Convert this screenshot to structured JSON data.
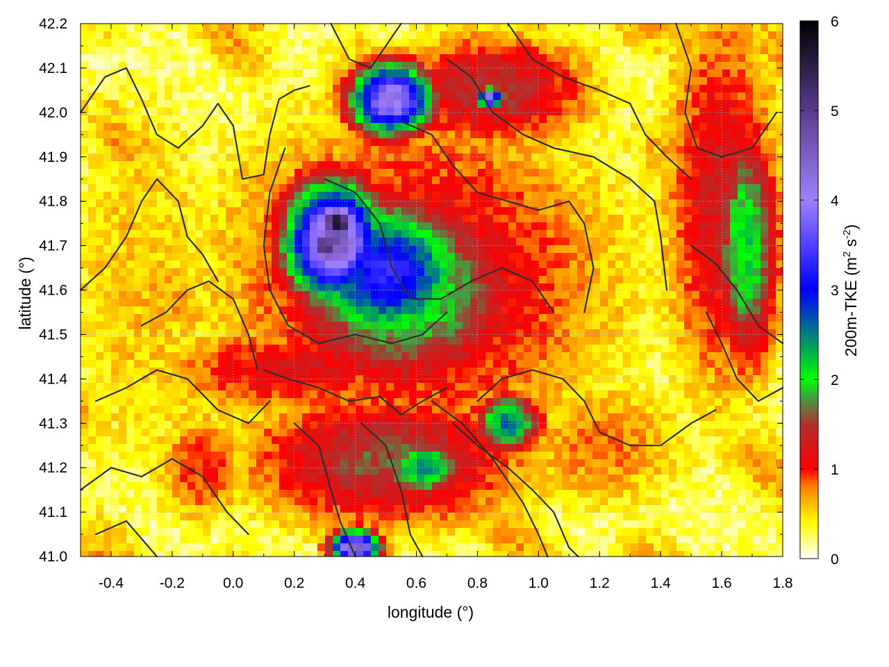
{
  "chart_data": {
    "type": "heatmap",
    "title": "",
    "xlabel": "longitude (°)",
    "ylabel": "latitude (°)",
    "xlim": [
      -0.5,
      1.8
    ],
    "ylim": [
      41.0,
      42.2
    ],
    "xticks": [
      -0.4,
      -0.2,
      0.0,
      0.2,
      0.4,
      0.6,
      0.8,
      1.0,
      1.2,
      1.4,
      1.6,
      1.8
    ],
    "xtick_labels": [
      "-0.4",
      "-0.2",
      "0.0",
      "0.2",
      "0.4",
      "0.6",
      "0.8",
      "1.0",
      "1.2",
      "1.4",
      "1.6",
      "1.8"
    ],
    "yticks": [
      41.0,
      41.1,
      41.2,
      41.3,
      41.4,
      41.5,
      41.6,
      41.7,
      41.8,
      41.9,
      42.0,
      42.1,
      42.2
    ],
    "ytick_labels": [
      "41.0",
      "41.1",
      "41.2",
      "41.3",
      "41.4",
      "41.5",
      "41.6",
      "41.7",
      "41.8",
      "41.9",
      "42.0",
      "42.1",
      "42.2"
    ],
    "grid": true,
    "colorbar": {
      "label_prefix": "200m-TKE (m",
      "label_sup1": "2",
      "label_mid": " s",
      "label_sup2": "-2",
      "label_suffix": ")",
      "range": [
        0,
        6
      ],
      "ticks": [
        0,
        1,
        2,
        3,
        4,
        5,
        6
      ],
      "tick_labels": [
        "0",
        "1",
        "2",
        "3",
        "4",
        "5",
        "6"
      ],
      "stops": [
        {
          "value": 0.0,
          "color": "#ffffff"
        },
        {
          "value": 0.4,
          "color": "#ffff00"
        },
        {
          "value": 0.8,
          "color": "#ff8000"
        },
        {
          "value": 1.0,
          "color": "#ff0000"
        },
        {
          "value": 1.5,
          "color": "#b03030"
        },
        {
          "value": 1.8,
          "color": "#40a040"
        },
        {
          "value": 2.0,
          "color": "#00ff00"
        },
        {
          "value": 3.0,
          "color": "#0000ff"
        },
        {
          "value": 4.0,
          "color": "#a080ff"
        },
        {
          "value": 5.0,
          "color": "#5a3c8c"
        },
        {
          "value": 6.0,
          "color": "#000000"
        }
      ]
    },
    "field_features": [
      {
        "name": "core",
        "lon": 0.34,
        "lat": 41.75,
        "value": 5.6,
        "slon": 0.06,
        "slat": 0.04
      },
      {
        "name": "core2",
        "lon": 0.3,
        "lat": 41.7,
        "value": 5.3,
        "slon": 0.05,
        "slat": 0.04
      },
      {
        "name": "purple-north",
        "lon": 0.52,
        "lat": 42.03,
        "value": 4.3,
        "slon": 0.1,
        "slat": 0.06
      },
      {
        "name": "purple-main",
        "lon": 0.33,
        "lat": 41.71,
        "value": 4.6,
        "slon": 0.12,
        "slat": 0.1
      },
      {
        "name": "blue-main",
        "lon": 0.5,
        "lat": 41.64,
        "value": 3.3,
        "slon": 0.2,
        "slat": 0.12
      },
      {
        "name": "green-rim",
        "lon": 0.55,
        "lat": 41.6,
        "value": 2.2,
        "slon": 0.3,
        "slat": 0.17
      },
      {
        "name": "red-halo",
        "lon": 0.6,
        "lat": 41.62,
        "value": 1.3,
        "slon": 0.5,
        "slat": 0.3
      },
      {
        "name": "south-band",
        "lon": 0.5,
        "lat": 41.22,
        "value": 1.6,
        "slon": 0.35,
        "slat": 0.12
      },
      {
        "name": "south-blue",
        "lon": 0.62,
        "lat": 41.2,
        "value": 2.5,
        "slon": 0.1,
        "slat": 0.05
      },
      {
        "name": "south-purple",
        "lon": 0.4,
        "lat": 41.02,
        "value": 4.5,
        "slon": 0.06,
        "slat": 0.03
      },
      {
        "name": "se-patch",
        "lon": 0.9,
        "lat": 41.3,
        "value": 2.6,
        "slon": 0.08,
        "slat": 0.05
      },
      {
        "name": "east-band",
        "lon": 1.68,
        "lat": 41.7,
        "value": 2.2,
        "slon": 0.08,
        "slat": 0.2
      },
      {
        "name": "east-red",
        "lon": 1.6,
        "lat": 41.8,
        "value": 1.3,
        "slon": 0.15,
        "slat": 0.35
      },
      {
        "name": "north-red",
        "lon": 0.85,
        "lat": 42.05,
        "value": 1.5,
        "slon": 0.25,
        "slat": 0.1
      },
      {
        "name": "north-dark",
        "lon": 0.84,
        "lat": 42.03,
        "value": 4.0,
        "slon": 0.03,
        "slat": 0.02
      },
      {
        "name": "diag-band",
        "lon": 0.2,
        "lat": 41.42,
        "value": 1.2,
        "slon": 0.35,
        "slat": 0.08
      },
      {
        "name": "west-yellow",
        "lon": -0.3,
        "lat": 41.6,
        "value": 0.6,
        "slon": 0.25,
        "slat": 0.4
      },
      {
        "name": "sw-red",
        "lon": -0.1,
        "lat": 41.2,
        "value": 1.0,
        "slon": 0.12,
        "slat": 0.1
      },
      {
        "name": "east-south-orange",
        "lon": 1.2,
        "lat": 41.25,
        "value": 0.8,
        "slon": 0.25,
        "slat": 0.12
      }
    ],
    "contours": [
      [
        [
          -0.5,
          42.0
        ],
        [
          -0.42,
          42.08
        ],
        [
          -0.35,
          42.1
        ],
        [
          -0.3,
          42.03
        ],
        [
          -0.25,
          41.95
        ],
        [
          -0.18,
          41.92
        ],
        [
          -0.1,
          41.97
        ],
        [
          -0.05,
          42.02
        ],
        [
          0.0,
          41.97
        ],
        [
          0.03,
          41.85
        ]
      ],
      [
        [
          0.03,
          41.85
        ],
        [
          0.1,
          41.86
        ],
        [
          0.12,
          41.95
        ],
        [
          0.15,
          42.03
        ],
        [
          0.2,
          42.05
        ],
        [
          0.25,
          42.06
        ]
      ],
      [
        [
          -0.5,
          41.6
        ],
        [
          -0.42,
          41.65
        ],
        [
          -0.35,
          41.72
        ],
        [
          -0.3,
          41.8
        ],
        [
          -0.25,
          41.85
        ],
        [
          -0.18,
          41.8
        ],
        [
          -0.15,
          41.72
        ],
        [
          -0.1,
          41.68
        ],
        [
          -0.05,
          41.62
        ]
      ],
      [
        [
          -0.3,
          41.52
        ],
        [
          -0.22,
          41.55
        ],
        [
          -0.15,
          41.6
        ],
        [
          -0.08,
          41.62
        ],
        [
          0.0,
          41.58
        ],
        [
          0.05,
          41.5
        ],
        [
          0.08,
          41.42
        ]
      ],
      [
        [
          -0.45,
          41.35
        ],
        [
          -0.35,
          41.38
        ],
        [
          -0.25,
          41.42
        ],
        [
          -0.15,
          41.4
        ],
        [
          -0.05,
          41.33
        ],
        [
          0.05,
          41.3
        ],
        [
          0.12,
          41.35
        ]
      ],
      [
        [
          -0.5,
          41.15
        ],
        [
          -0.4,
          41.2
        ],
        [
          -0.3,
          41.18
        ],
        [
          -0.2,
          41.22
        ],
        [
          -0.1,
          41.18
        ],
        [
          -0.02,
          41.1
        ],
        [
          0.05,
          41.05
        ]
      ],
      [
        [
          -0.45,
          41.05
        ],
        [
          -0.35,
          41.08
        ],
        [
          -0.25,
          41.0
        ]
      ],
      [
        [
          0.17,
          41.92
        ],
        [
          0.12,
          41.82
        ],
        [
          0.1,
          41.7
        ],
        [
          0.12,
          41.6
        ],
        [
          0.18,
          41.52
        ],
        [
          0.28,
          41.48
        ],
        [
          0.4,
          41.5
        ],
        [
          0.52,
          41.48
        ],
        [
          0.62,
          41.5
        ],
        [
          0.7,
          41.55
        ]
      ],
      [
        [
          0.3,
          41.85
        ],
        [
          0.4,
          41.82
        ],
        [
          0.48,
          41.75
        ],
        [
          0.52,
          41.65
        ],
        [
          0.58,
          41.58
        ],
        [
          0.68,
          41.58
        ],
        [
          0.78,
          41.62
        ],
        [
          0.88,
          41.65
        ],
        [
          0.98,
          41.62
        ],
        [
          1.05,
          41.55
        ]
      ],
      [
        [
          0.55,
          41.98
        ],
        [
          0.65,
          41.95
        ],
        [
          0.72,
          41.88
        ],
        [
          0.8,
          41.82
        ],
        [
          0.9,
          41.8
        ],
        [
          1.0,
          41.78
        ],
        [
          1.1,
          41.8
        ],
        [
          1.15,
          41.75
        ],
        [
          1.18,
          41.65
        ],
        [
          1.15,
          41.55
        ]
      ],
      [
        [
          0.7,
          42.12
        ],
        [
          0.78,
          42.08
        ],
        [
          0.85,
          42.0
        ],
        [
          0.95,
          41.95
        ],
        [
          1.05,
          41.92
        ],
        [
          1.18,
          41.9
        ],
        [
          1.3,
          41.85
        ],
        [
          1.38,
          41.8
        ],
        [
          1.4,
          41.72
        ],
        [
          1.42,
          41.6
        ]
      ],
      [
        [
          0.9,
          42.2
        ],
        [
          0.98,
          42.12
        ],
        [
          1.08,
          42.08
        ],
        [
          1.2,
          42.05
        ],
        [
          1.3,
          42.02
        ],
        [
          1.35,
          41.95
        ],
        [
          1.42,
          41.9
        ],
        [
          1.5,
          41.85
        ]
      ],
      [
        [
          1.45,
          42.2
        ],
        [
          1.5,
          42.1
        ],
        [
          1.48,
          42.0
        ],
        [
          1.52,
          41.92
        ],
        [
          1.6,
          41.9
        ],
        [
          1.7,
          41.92
        ],
        [
          1.78,
          42.0
        ]
      ],
      [
        [
          0.8,
          41.35
        ],
        [
          0.88,
          41.4
        ],
        [
          0.98,
          41.42
        ],
        [
          1.08,
          41.4
        ],
        [
          1.15,
          41.35
        ],
        [
          1.2,
          41.28
        ],
        [
          1.3,
          41.25
        ],
        [
          1.4,
          41.25
        ],
        [
          1.5,
          41.3
        ],
        [
          1.58,
          41.33
        ]
      ],
      [
        [
          0.72,
          41.3
        ],
        [
          0.8,
          41.25
        ],
        [
          0.9,
          41.2
        ],
        [
          0.98,
          41.15
        ],
        [
          1.05,
          41.1
        ],
        [
          1.1,
          41.02
        ],
        [
          1.13,
          41.0
        ]
      ],
      [
        [
          0.65,
          41.35
        ],
        [
          0.75,
          41.3
        ],
        [
          0.85,
          41.22
        ],
        [
          0.95,
          41.12
        ],
        [
          1.0,
          41.05
        ],
        [
          1.03,
          41.0
        ]
      ],
      [
        [
          0.2,
          41.3
        ],
        [
          0.28,
          41.25
        ],
        [
          0.32,
          41.15
        ],
        [
          0.35,
          41.08
        ],
        [
          0.4,
          41.0
        ]
      ],
      [
        [
          0.42,
          41.3
        ],
        [
          0.5,
          41.25
        ],
        [
          0.55,
          41.15
        ],
        [
          0.58,
          41.05
        ],
        [
          0.62,
          41.0
        ]
      ],
      [
        [
          0.1,
          41.42
        ],
        [
          0.18,
          41.4
        ],
        [
          0.28,
          41.38
        ],
        [
          0.38,
          41.35
        ],
        [
          0.48,
          41.36
        ],
        [
          0.55,
          41.32
        ],
        [
          0.62,
          41.35
        ],
        [
          0.7,
          41.38
        ]
      ],
      [
        [
          1.55,
          41.55
        ],
        [
          1.6,
          41.48
        ],
        [
          1.65,
          41.4
        ],
        [
          1.72,
          41.35
        ],
        [
          1.8,
          41.38
        ]
      ],
      [
        [
          1.5,
          41.7
        ],
        [
          1.58,
          41.66
        ],
        [
          1.65,
          41.6
        ],
        [
          1.72,
          41.52
        ],
        [
          1.8,
          41.48
        ]
      ],
      [
        [
          0.32,
          42.2
        ],
        [
          0.38,
          42.12
        ],
        [
          0.45,
          42.1
        ],
        [
          0.5,
          42.15
        ],
        [
          0.55,
          42.2
        ]
      ]
    ]
  }
}
